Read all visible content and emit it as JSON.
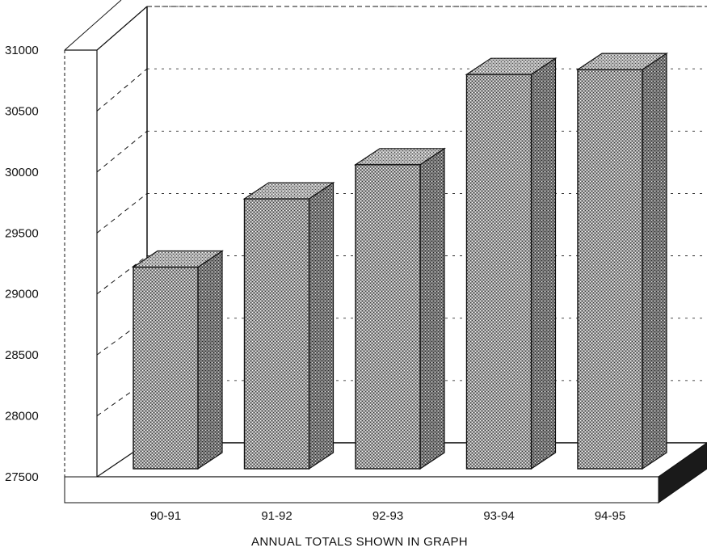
{
  "chart_data": {
    "type": "bar",
    "categories": [
      "90-91",
      "91-92",
      "92-93",
      "93-94",
      "94-95"
    ],
    "values": [
      29220,
      29780,
      30060,
      30800,
      30840
    ],
    "xlabel": "ANNUAL TOTALS SHOWN IN GRAPH",
    "ylabel": "",
    "ylim": [
      27500,
      31000
    ],
    "yticks": [
      27500,
      28000,
      28500,
      29000,
      29500,
      30000,
      30500,
      31000
    ],
    "grid": true,
    "legend": "none",
    "style": "3d",
    "colors": {
      "bar": "#8a8a8a",
      "bar_top": "#b0b0b0",
      "bar_side": "#5a5a5a",
      "floor_side": "#1a1a1a"
    }
  }
}
